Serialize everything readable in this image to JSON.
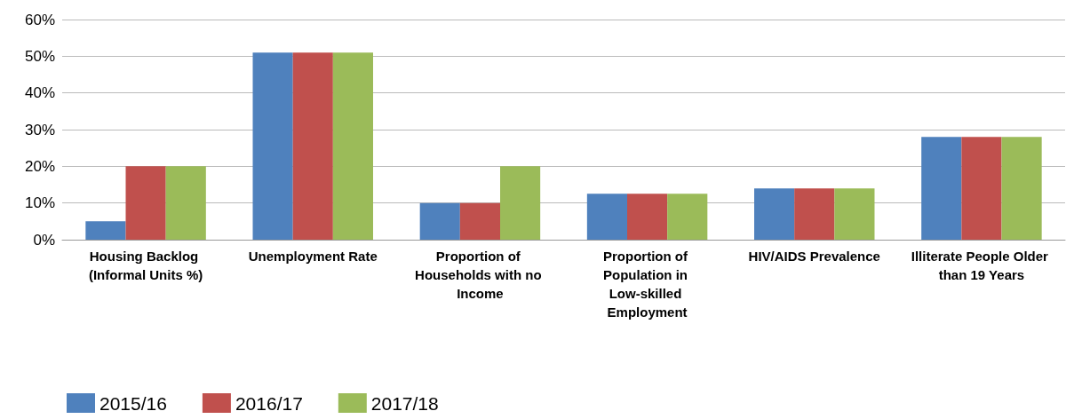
{
  "chart_data": {
    "type": "bar",
    "categories": [
      "Housing Backlog (Informal Units %)",
      "Unemployment Rate",
      "Proportion of Households with no Income",
      "Proportion of Population in Low-skilled Employment",
      "HIV/AIDS Prevalence",
      "Illiterate People Older than 19 Years"
    ],
    "series": [
      {
        "name": "2015/16",
        "color": "#4f81bd",
        "values": [
          5,
          51,
          10,
          12.5,
          14,
          28
        ]
      },
      {
        "name": "2016/17",
        "color": "#c0504d",
        "values": [
          20,
          51,
          10,
          12.5,
          14,
          28
        ]
      },
      {
        "name": "2017/18",
        "color": "#9bbb59",
        "values": [
          20,
          51,
          20,
          12.5,
          14,
          28
        ]
      }
    ],
    "ylim": [
      0,
      60
    ],
    "yticks": [
      {
        "value": 0,
        "label": "0%"
      },
      {
        "value": 10,
        "label": "10%"
      },
      {
        "value": 20,
        "label": "20%"
      },
      {
        "value": 30,
        "label": "30%"
      },
      {
        "value": 40,
        "label": "40%"
      },
      {
        "value": 50,
        "label": "50%"
      },
      {
        "value": 60,
        "label": "60%"
      }
    ],
    "grid": "y",
    "legend": "bottom left"
  }
}
